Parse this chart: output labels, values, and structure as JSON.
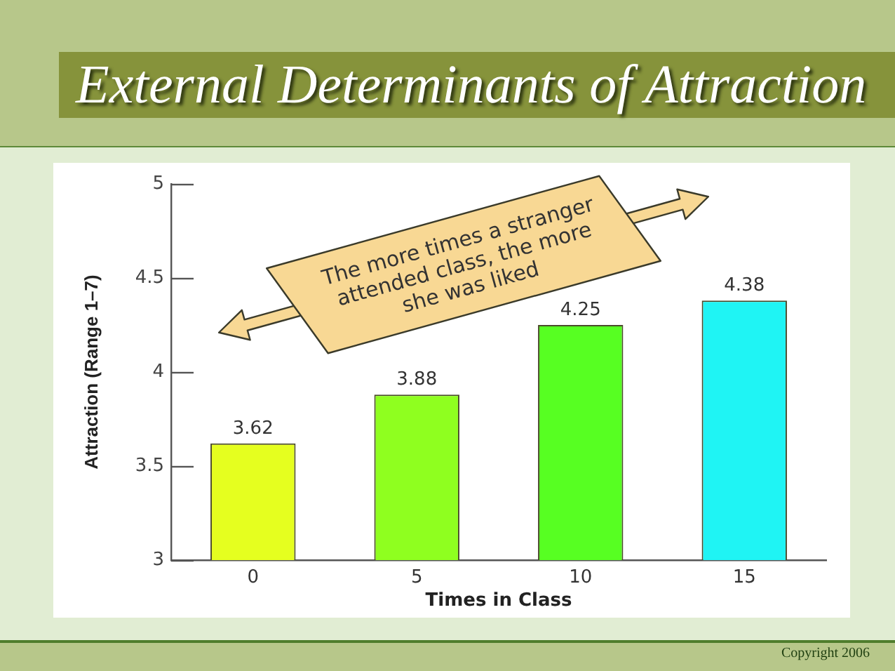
{
  "chart_data": {
    "type": "bar",
    "title": "External Determinants of Attraction",
    "xlabel": "Times in Class",
    "ylabel": "Attraction (Range 1–7)",
    "categories": [
      "0",
      "5",
      "10",
      "15"
    ],
    "values": [
      3.62,
      3.88,
      4.25,
      4.38
    ],
    "colors": [
      "#e5ff1f",
      "#8fff1f",
      "#57ff22",
      "#1ff4f4"
    ],
    "ylim": [
      3,
      5
    ],
    "yticks": [
      3,
      3.5,
      4,
      4.5,
      5
    ],
    "data_labels": true,
    "annotations": [
      "The more times a stranger attended class, the more she was liked",
      "Copyright 2006"
    ]
  }
}
